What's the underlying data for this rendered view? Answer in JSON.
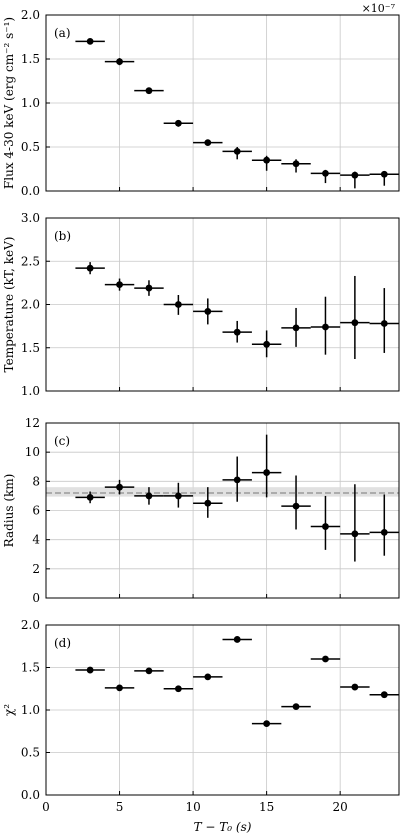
{
  "chart_data": [
    {
      "type": "scatter",
      "panel_label": "(a)",
      "ylabel": "Flux 4-30 keV (erg cm⁻² s⁻¹)",
      "y_multiplier": "×10⁻⁷",
      "xlim": [
        0,
        24
      ],
      "ylim": [
        0,
        2.0
      ],
      "yticks": [
        0.0,
        0.5,
        1.0,
        1.5,
        2.0
      ],
      "ytick_labels": [
        "0.0",
        "0.5",
        "1.0",
        "1.5",
        "2.0"
      ],
      "grid": true,
      "points": [
        {
          "x": 3,
          "xerr": 1,
          "y": 1.7,
          "ylo": 1.67,
          "yhi": 1.73
        },
        {
          "x": 5,
          "xerr": 1,
          "y": 1.47,
          "ylo": 1.43,
          "yhi": 1.51
        },
        {
          "x": 7,
          "xerr": 1,
          "y": 1.14,
          "ylo": 1.11,
          "yhi": 1.17
        },
        {
          "x": 9,
          "xerr": 1,
          "y": 0.77,
          "ylo": 0.73,
          "yhi": 0.8
        },
        {
          "x": 11,
          "xerr": 1,
          "y": 0.55,
          "ylo": 0.52,
          "yhi": 0.58
        },
        {
          "x": 13,
          "xerr": 1,
          "y": 0.45,
          "ylo": 0.36,
          "yhi": 0.5
        },
        {
          "x": 15,
          "xerr": 1,
          "y": 0.35,
          "ylo": 0.23,
          "yhi": 0.4
        },
        {
          "x": 17,
          "xerr": 1,
          "y": 0.31,
          "ylo": 0.21,
          "yhi": 0.36
        },
        {
          "x": 19,
          "xerr": 1,
          "y": 0.2,
          "ylo": 0.09,
          "yhi": 0.24
        },
        {
          "x": 21,
          "xerr": 1,
          "y": 0.18,
          "ylo": 0.03,
          "yhi": 0.22
        },
        {
          "x": 23,
          "xerr": 1,
          "y": 0.19,
          "ylo": 0.06,
          "yhi": 0.22
        }
      ]
    },
    {
      "type": "scatter",
      "panel_label": "(b)",
      "ylabel": "Temperature (kT, keV)",
      "xlim": [
        0,
        24
      ],
      "ylim": [
        1.0,
        3.0
      ],
      "yticks": [
        1.0,
        1.5,
        2.0,
        2.5,
        3.0
      ],
      "ytick_labels": [
        "1.0",
        "1.5",
        "2.0",
        "2.5",
        "3.0"
      ],
      "grid": true,
      "points": [
        {
          "x": 3,
          "xerr": 1,
          "y": 2.42,
          "ylo": 2.35,
          "yhi": 2.49
        },
        {
          "x": 5,
          "xerr": 1,
          "y": 2.23,
          "ylo": 2.16,
          "yhi": 2.3
        },
        {
          "x": 7,
          "xerr": 1,
          "y": 2.19,
          "ylo": 2.1,
          "yhi": 2.28
        },
        {
          "x": 9,
          "xerr": 1,
          "y": 2.0,
          "ylo": 1.88,
          "yhi": 2.11
        },
        {
          "x": 11,
          "xerr": 1,
          "y": 1.92,
          "ylo": 1.77,
          "yhi": 2.07
        },
        {
          "x": 13,
          "xerr": 1,
          "y": 1.68,
          "ylo": 1.56,
          "yhi": 1.81
        },
        {
          "x": 15,
          "xerr": 1,
          "y": 1.54,
          "ylo": 1.39,
          "yhi": 1.7
        },
        {
          "x": 17,
          "xerr": 1,
          "y": 1.73,
          "ylo": 1.51,
          "yhi": 1.96
        },
        {
          "x": 19,
          "xerr": 1,
          "y": 1.74,
          "ylo": 1.42,
          "yhi": 2.09
        },
        {
          "x": 21,
          "xerr": 1,
          "y": 1.79,
          "ylo": 1.37,
          "yhi": 2.33
        },
        {
          "x": 23,
          "xerr": 1,
          "y": 1.78,
          "ylo": 1.44,
          "yhi": 2.19
        }
      ]
    },
    {
      "type": "scatter",
      "panel_label": "(c)",
      "ylabel": "Radius (km)",
      "xlim": [
        0,
        24
      ],
      "ylim": [
        0,
        12
      ],
      "yticks": [
        0,
        2,
        4,
        6,
        8,
        10,
        12
      ],
      "ytick_labels": [
        "0",
        "2",
        "4",
        "6",
        "8",
        "10",
        "12"
      ],
      "grid": true,
      "band": {
        "lo": 6.95,
        "hi": 7.6,
        "color": "#d9d9d9"
      },
      "hline": {
        "y": 7.2,
        "color": "#8c8c8c",
        "style": "dashed"
      },
      "points": [
        {
          "x": 3,
          "xerr": 1,
          "y": 6.9,
          "ylo": 6.5,
          "yhi": 7.3
        },
        {
          "x": 5,
          "xerr": 1,
          "y": 7.6,
          "ylo": 7.1,
          "yhi": 8.1
        },
        {
          "x": 7,
          "xerr": 1,
          "y": 7.0,
          "ylo": 6.4,
          "yhi": 7.6
        },
        {
          "x": 9,
          "xerr": 1,
          "y": 7.0,
          "ylo": 6.2,
          "yhi": 7.9
        },
        {
          "x": 11,
          "xerr": 1,
          "y": 6.5,
          "ylo": 5.5,
          "yhi": 7.6
        },
        {
          "x": 13,
          "xerr": 1,
          "y": 8.1,
          "ylo": 6.6,
          "yhi": 9.7
        },
        {
          "x": 15,
          "xerr": 1,
          "y": 8.6,
          "ylo": 6.9,
          "yhi": 11.2
        },
        {
          "x": 17,
          "xerr": 1,
          "y": 6.3,
          "ylo": 4.7,
          "yhi": 8.4
        },
        {
          "x": 19,
          "xerr": 1,
          "y": 4.9,
          "ylo": 3.3,
          "yhi": 7.0
        },
        {
          "x": 21,
          "xerr": 1,
          "y": 4.4,
          "ylo": 2.5,
          "yhi": 7.8
        },
        {
          "x": 23,
          "xerr": 1,
          "y": 4.5,
          "ylo": 2.9,
          "yhi": 7.1
        }
      ]
    },
    {
      "type": "scatter",
      "panel_label": "(d)",
      "ylabel": "χ²",
      "xlabel": "T − T₀ (s)",
      "xlim": [
        0,
        24
      ],
      "ylim": [
        0.0,
        2.0
      ],
      "yticks": [
        0.0,
        0.5,
        1.0,
        1.5,
        2.0
      ],
      "ytick_labels": [
        "0.0",
        "0.5",
        "1.0",
        "1.5",
        "2.0"
      ],
      "xticks": [
        0,
        5,
        10,
        15,
        20
      ],
      "xtick_labels": [
        "0",
        "5",
        "10",
        "15",
        "20"
      ],
      "grid": true,
      "points": [
        {
          "x": 3,
          "xerr": 1,
          "y": 1.47
        },
        {
          "x": 5,
          "xerr": 1,
          "y": 1.26
        },
        {
          "x": 7,
          "xerr": 1,
          "y": 1.46
        },
        {
          "x": 9,
          "xerr": 1,
          "y": 1.25
        },
        {
          "x": 11,
          "xerr": 1,
          "y": 1.39
        },
        {
          "x": 13,
          "xerr": 1,
          "y": 1.83
        },
        {
          "x": 15,
          "xerr": 1,
          "y": 0.84
        },
        {
          "x": 17,
          "xerr": 1,
          "y": 1.04
        },
        {
          "x": 19,
          "xerr": 1,
          "y": 1.6
        },
        {
          "x": 21,
          "xerr": 1,
          "y": 1.27
        },
        {
          "x": 23,
          "xerr": 1,
          "y": 1.18
        }
      ]
    }
  ]
}
